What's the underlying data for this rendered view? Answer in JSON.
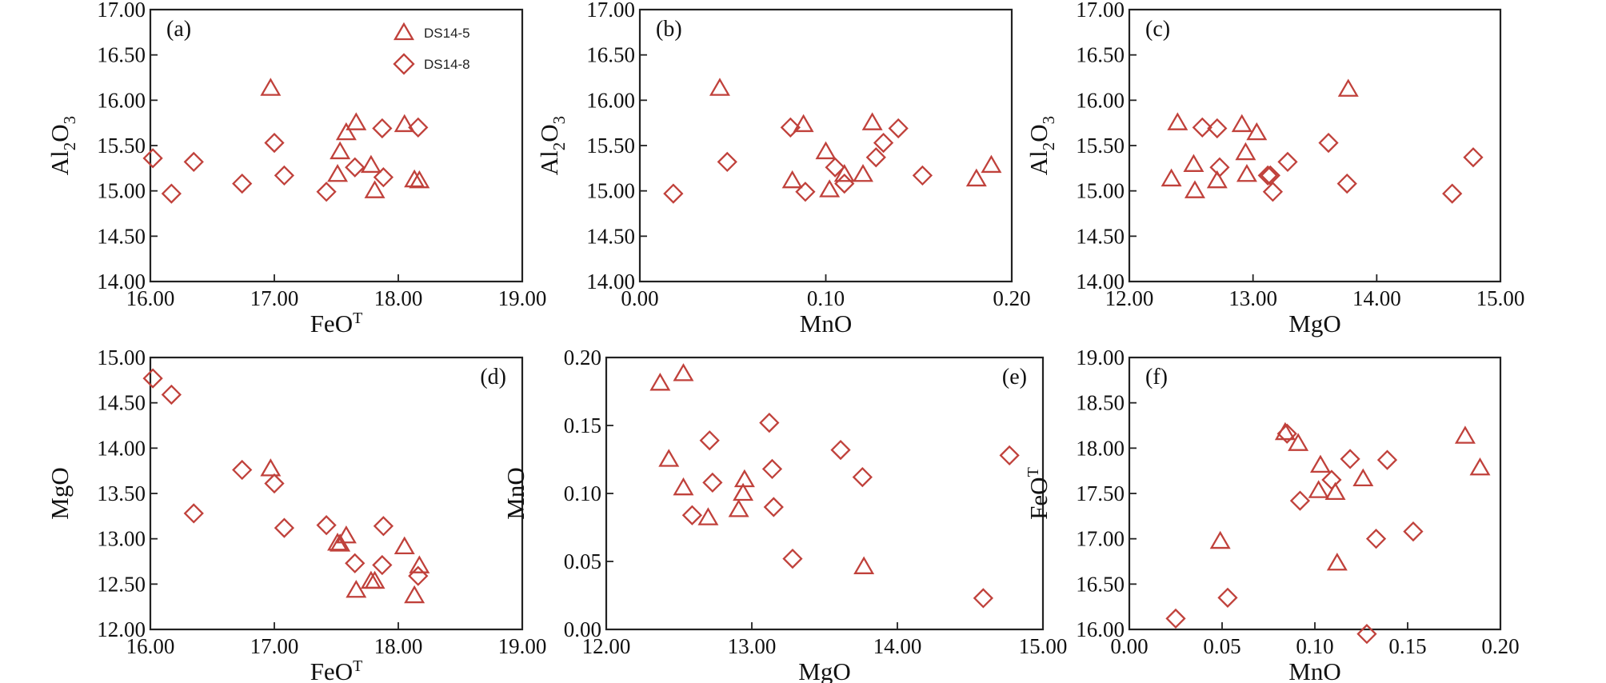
{
  "figure": {
    "marker_color": "#c0413b",
    "legend": [
      {
        "label": "DS14-5",
        "marker": "triangle"
      },
      {
        "label": "DS14-8",
        "marker": "diamond"
      }
    ]
  },
  "chart_data": [
    {
      "id": "a",
      "type": "scatter",
      "panel_label": "(a)",
      "xlabel": "FeO",
      "xlabel_sup": "T",
      "ylabel": "Al",
      "ylabel_sub": "2",
      "ylabel_tail": "O",
      "ylabel_sub2": "3",
      "xlim": [
        16.0,
        19.0
      ],
      "ylim": [
        14.0,
        17.0
      ],
      "xticks": [
        "16.00",
        "17.00",
        "18.00",
        "19.00"
      ],
      "yticks": [
        "14.00",
        "14.50",
        "15.00",
        "15.50",
        "16.00",
        "16.50",
        "17.00"
      ],
      "series": [
        {
          "name": "DS14-5",
          "marker": "triangle",
          "x": [
            16.97,
            17.51,
            17.53,
            17.58,
            17.66,
            17.78,
            17.81,
            18.05,
            18.13,
            18.17
          ],
          "y": [
            16.13,
            15.18,
            15.43,
            15.64,
            15.75,
            15.28,
            15.0,
            15.73,
            15.12,
            15.11
          ]
        },
        {
          "name": "DS14-8",
          "marker": "diamond",
          "x": [
            16.02,
            16.17,
            16.35,
            16.74,
            17.0,
            17.08,
            17.42,
            17.65,
            17.87,
            17.88,
            18.16
          ],
          "y": [
            15.36,
            14.97,
            15.32,
            15.08,
            15.53,
            15.17,
            14.99,
            15.26,
            15.69,
            15.15,
            15.7
          ]
        }
      ]
    },
    {
      "id": "b",
      "type": "scatter",
      "panel_label": "(b)",
      "xlabel": "MnO",
      "xlabel_sup": "",
      "ylabel": "Al",
      "ylabel_sub": "2",
      "ylabel_tail": "O",
      "ylabel_sub2": "3",
      "xlim": [
        0.0,
        0.2
      ],
      "ylim": [
        14.0,
        17.0
      ],
      "xticks": [
        "0.00",
        "0.10",
        "0.20"
      ],
      "yticks": [
        "14.00",
        "14.50",
        "15.00",
        "15.50",
        "16.00",
        "16.50",
        "17.00"
      ],
      "series": [
        {
          "name": "DS14-5",
          "marker": "triangle",
          "x": [
            0.043,
            0.082,
            0.088,
            0.1,
            0.102,
            0.11,
            0.12,
            0.125,
            0.181,
            0.189
          ],
          "y": [
            16.13,
            15.11,
            15.73,
            15.43,
            15.01,
            15.18,
            15.18,
            15.75,
            15.13,
            15.28
          ]
        },
        {
          "name": "DS14-8",
          "marker": "diamond",
          "x": [
            0.018,
            0.047,
            0.081,
            0.089,
            0.105,
            0.11,
            0.127,
            0.131,
            0.139,
            0.152
          ],
          "y": [
            14.97,
            15.32,
            15.7,
            14.99,
            15.26,
            15.08,
            15.37,
            15.53,
            15.69,
            15.17
          ]
        }
      ]
    },
    {
      "id": "c",
      "type": "scatter",
      "panel_label": "(c)",
      "xlabel": "MgO",
      "xlabel_sup": "",
      "ylabel": "Al",
      "ylabel_sub": "2",
      "ylabel_tail": "O",
      "ylabel_sub2": "3",
      "xlim": [
        12.0,
        15.0
      ],
      "ylim": [
        14.0,
        17.0
      ],
      "xticks": [
        "12.00",
        "13.00",
        "14.00",
        "15.00"
      ],
      "yticks": [
        "14.00",
        "14.50",
        "15.00",
        "15.50",
        "16.00",
        "16.50",
        "17.00"
      ],
      "series": [
        {
          "name": "DS14-5",
          "marker": "triangle",
          "x": [
            12.34,
            12.39,
            12.52,
            12.53,
            12.71,
            12.91,
            12.94,
            12.95,
            13.03,
            13.77
          ],
          "y": [
            15.13,
            15.75,
            15.29,
            15.0,
            15.11,
            15.73,
            15.42,
            15.18,
            15.64,
            16.12
          ]
        },
        {
          "name": "DS14-8",
          "marker": "diamond",
          "x": [
            12.59,
            12.71,
            12.73,
            13.12,
            13.14,
            13.16,
            13.28,
            13.61,
            13.76,
            14.61,
            14.78
          ],
          "y": [
            15.7,
            15.69,
            15.26,
            15.17,
            15.17,
            14.99,
            15.32,
            15.53,
            15.08,
            14.97,
            15.37
          ]
        }
      ]
    },
    {
      "id": "d",
      "type": "scatter",
      "panel_label": "(d)",
      "xlabel": "FeO",
      "xlabel_sup": "T",
      "ylabel": "MgO",
      "ylabel_sub": "",
      "ylabel_tail": "",
      "ylabel_sub2": "",
      "xlim": [
        16.0,
        19.0
      ],
      "ylim": [
        12.0,
        15.0
      ],
      "xticks": [
        "16.00",
        "17.00",
        "18.00",
        "19.00"
      ],
      "yticks": [
        "12.00",
        "12.50",
        "13.00",
        "13.50",
        "14.00",
        "14.50",
        "15.00"
      ],
      "series": [
        {
          "name": "DS14-5",
          "marker": "triangle",
          "x": [
            16.97,
            17.51,
            17.53,
            17.58,
            17.66,
            17.78,
            17.81,
            18.05,
            18.13,
            18.17
          ],
          "y": [
            13.77,
            12.95,
            12.94,
            13.03,
            12.43,
            12.53,
            12.53,
            12.91,
            12.37,
            12.7
          ]
        },
        {
          "name": "DS14-8",
          "marker": "diamond",
          "x": [
            16.02,
            16.17,
            16.35,
            16.74,
            17.0,
            17.08,
            17.42,
            17.65,
            17.87,
            17.88,
            18.16
          ],
          "y": [
            14.77,
            14.59,
            13.28,
            13.76,
            13.61,
            13.12,
            13.15,
            12.73,
            12.71,
            13.14,
            12.59
          ]
        }
      ]
    },
    {
      "id": "e",
      "type": "scatter",
      "panel_label": "(e)",
      "xlabel": "MgO",
      "xlabel_sup": "",
      "ylabel": "MnO",
      "ylabel_sub": "",
      "ylabel_tail": "",
      "ylabel_sub2": "",
      "xlim": [
        12.0,
        15.0
      ],
      "ylim": [
        0.0,
        0.2
      ],
      "xticks": [
        "12.00",
        "13.00",
        "14.00",
        "15.00"
      ],
      "yticks": [
        "0.00",
        "0.05",
        "0.10",
        "0.15",
        "0.20"
      ],
      "series": [
        {
          "name": "DS14-5",
          "marker": "triangle",
          "x": [
            12.37,
            12.43,
            12.53,
            12.53,
            12.7,
            12.91,
            12.94,
            12.95,
            13.77
          ],
          "y": [
            0.181,
            0.125,
            0.188,
            0.104,
            0.082,
            0.088,
            0.1,
            0.11,
            0.046
          ]
        },
        {
          "name": "DS14-8",
          "marker": "diamond",
          "x": [
            12.59,
            12.71,
            12.73,
            13.12,
            13.14,
            13.15,
            13.28,
            13.61,
            13.76,
            14.59,
            14.77
          ],
          "y": [
            0.084,
            0.139,
            0.108,
            0.152,
            0.118,
            0.09,
            0.052,
            0.132,
            0.112,
            0.023,
            0.128
          ]
        }
      ]
    },
    {
      "id": "f",
      "type": "scatter",
      "panel_label": "(f)",
      "xlabel": "MnO",
      "xlabel_sup": "",
      "ylabel": "FeO",
      "ylabel_sub": "",
      "ylabel_tail": "",
      "ylabel_sub2": "",
      "ylabel_sup": "T",
      "xlim": [
        0.0,
        0.2
      ],
      "ylim": [
        16.0,
        19.0
      ],
      "xticks": [
        "0.00",
        "0.05",
        "0.10",
        "0.15",
        "0.20"
      ],
      "yticks": [
        "16.00",
        "16.50",
        "17.00",
        "17.50",
        "18.00",
        "18.50",
        "19.00"
      ],
      "series": [
        {
          "name": "DS14-5",
          "marker": "triangle",
          "x": [
            0.049,
            0.084,
            0.091,
            0.103,
            0.102,
            0.111,
            0.112,
            0.126,
            0.181,
            0.189
          ],
          "y": [
            16.97,
            18.17,
            18.05,
            17.81,
            17.53,
            17.51,
            16.73,
            17.66,
            18.13,
            17.78
          ]
        },
        {
          "name": "DS14-8",
          "marker": "diamond",
          "x": [
            0.025,
            0.053,
            0.085,
            0.092,
            0.109,
            0.119,
            0.128,
            0.133,
            0.139,
            0.153
          ],
          "y": [
            16.12,
            16.35,
            18.16,
            17.42,
            17.65,
            17.88,
            15.95,
            17.0,
            17.87,
            17.08
          ]
        }
      ]
    }
  ]
}
